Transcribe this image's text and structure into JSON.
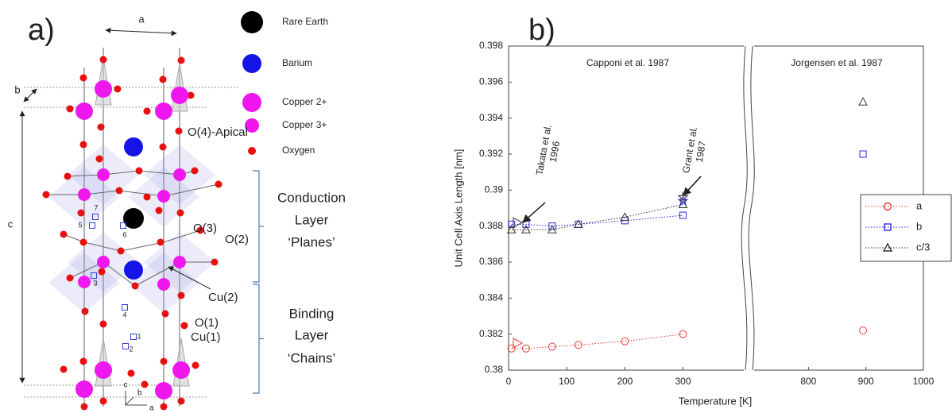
{
  "panel_a": {
    "label": "a)",
    "lattice_labels": [
      "a",
      "b",
      "c"
    ],
    "legend": [
      {
        "label": "Rare Earth",
        "color": "#000000"
      },
      {
        "label": "Barium",
        "color": "#1414e6"
      },
      {
        "label": "Copper 2+",
        "color": "#ee18ee"
      },
      {
        "label": "Copper 3+",
        "color": "#ee18ee"
      },
      {
        "label": "Oxygen",
        "color": "#e81010"
      }
    ],
    "sites": [
      "O(4)-Apical",
      "O(3)",
      "O(2)",
      "Cu(2)",
      "O(1)",
      "Cu(1)"
    ],
    "site_numbers": [
      "1",
      "2",
      "3",
      "4",
      "5",
      "6",
      "7"
    ],
    "layers": [
      {
        "lines": [
          "Conduction",
          "Layer",
          "‘Planes’"
        ]
      },
      {
        "lines": [
          "Binding",
          "Layer",
          "‘Chains’"
        ]
      }
    ],
    "triad": [
      "c",
      "b",
      "a"
    ]
  },
  "chart_data": [
    {
      "type": "scatter",
      "title": "b)",
      "xlabel": "Temperature [K]",
      "ylabel": "Unit Cell Axis Length [nm]",
      "xlim": [
        0,
        410
      ],
      "xticks": [
        0,
        100,
        200,
        300
      ],
      "ylim": [
        0.38,
        0.398
      ],
      "yticks": [
        0.38,
        0.382,
        0.384,
        0.386,
        0.388,
        0.39,
        0.392,
        0.394,
        0.396,
        0.398
      ],
      "annotations": [
        {
          "lines": [
            "Capponi et al. 1987"
          ]
        },
        {
          "lines": [
            "Takata et al.",
            "1996"
          ]
        },
        {
          "lines": [
            "Grant et al.",
            "1987"
          ]
        }
      ],
      "series": [
        {
          "color": "#f03c3c",
          "marker": "circle",
          "line": true,
          "x": [
            5,
            30,
            75,
            120,
            200,
            300
          ],
          "values": [
            0.3812,
            0.3812,
            0.3813,
            0.3814,
            0.3816,
            0.382
          ]
        },
        {
          "color": "#2a2ae0",
          "marker": "square",
          "line": true,
          "x": [
            5,
            30,
            75,
            120,
            200,
            300
          ],
          "values": [
            0.3881,
            0.3881,
            0.388,
            0.3881,
            0.3883,
            0.3886
          ]
        },
        {
          "color": "#333333",
          "marker": "triangle",
          "line": true,
          "x": [
            5,
            30,
            75,
            120,
            200,
            300
          ],
          "values": [
            0.3878,
            0.3878,
            0.3878,
            0.3881,
            0.3885,
            0.3892
          ]
        },
        {
          "color": "#f03c3c",
          "marker": "triangle-right",
          "line": false,
          "x": [
            15
          ],
          "values": [
            0.3815
          ]
        },
        {
          "color": "#333333",
          "marker": "triangle-right",
          "line": false,
          "x": [
            15
          ],
          "values": [
            0.3882
          ]
        },
        {
          "color": "#333333",
          "marker": "star",
          "line": false,
          "x": [
            300
          ],
          "values": [
            0.3896
          ]
        },
        {
          "color": "#2a2ae0",
          "marker": "star",
          "line": false,
          "x": [
            300
          ],
          "values": [
            0.3894
          ]
        }
      ]
    },
    {
      "type": "scatter",
      "xlim": [
        700,
        1000
      ],
      "xticks": [
        800,
        900,
        1000
      ],
      "ylim": [
        0.38,
        0.398
      ],
      "legend": "right",
      "annotations": [
        {
          "lines": [
            "Jorgensen et al. 1987"
          ]
        }
      ],
      "series": [
        {
          "name": "a",
          "color": "#f03c3c",
          "marker": "circle",
          "line": true,
          "x": [
            895
          ],
          "values": [
            0.3822
          ]
        },
        {
          "name": "b",
          "color": "#2a2ae0",
          "marker": "square",
          "line": true,
          "x": [
            895
          ],
          "values": [
            0.392
          ]
        },
        {
          "name": "c/3",
          "color": "#333333",
          "marker": "triangle",
          "line": true,
          "x": [
            895
          ],
          "values": [
            0.3949
          ]
        }
      ]
    }
  ]
}
